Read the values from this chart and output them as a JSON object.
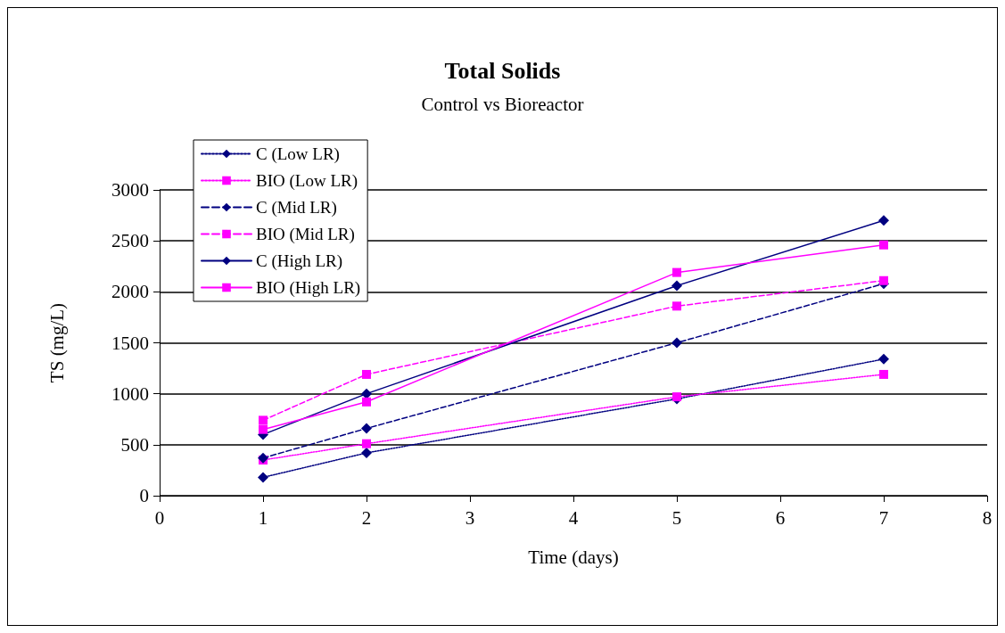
{
  "chart_data": {
    "type": "line",
    "title": "Total Solids",
    "subtitle": "Control vs Bioreactor",
    "xlabel": "Time (days)",
    "ylabel": "TS (mg/L)",
    "x": [
      1,
      2,
      5,
      7
    ],
    "series": [
      {
        "name": "C (Low LR)",
        "color": "#000080",
        "marker": "diamond",
        "line_style": "dotted",
        "values": [
          180,
          420,
          950,
          1340
        ]
      },
      {
        "name": "BIO (Low LR)",
        "color": "#ff00ff",
        "marker": "square",
        "line_style": "dotted",
        "values": [
          350,
          510,
          970,
          1190
        ]
      },
      {
        "name": "C (Mid LR)",
        "color": "#000080",
        "marker": "diamond",
        "line_style": "dashed",
        "values": [
          370,
          660,
          1500,
          2080
        ]
      },
      {
        "name": "BIO (Mid LR)",
        "color": "#ff00ff",
        "marker": "square",
        "line_style": "dashed",
        "values": [
          740,
          1190,
          1860,
          2110
        ]
      },
      {
        "name": "C (High LR)",
        "color": "#000080",
        "marker": "diamond",
        "line_style": "solid",
        "values": [
          600,
          1000,
          2060,
          2700
        ]
      },
      {
        "name": "BIO (High LR)",
        "color": "#ff00ff",
        "marker": "square",
        "line_style": "solid",
        "values": [
          650,
          920,
          2190,
          2460
        ]
      }
    ],
    "xlim": [
      0,
      8
    ],
    "xticks": [
      0,
      1,
      2,
      3,
      4,
      5,
      6,
      7,
      8
    ],
    "ylim": [
      0,
      3000
    ],
    "yticks": [
      0,
      500,
      1000,
      1500,
      2000,
      2500,
      3000
    ],
    "grid": "y",
    "legend": "top left"
  }
}
